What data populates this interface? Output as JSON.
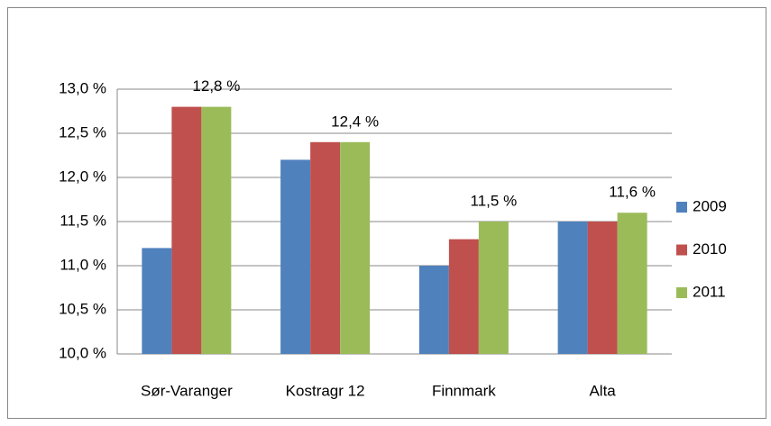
{
  "chart_data": {
    "type": "bar",
    "categories": [
      "Sør-Varanger",
      "Kostragr 12",
      "Finnmark",
      "Alta"
    ],
    "series": [
      {
        "name": "2009",
        "color": "#4f81bd",
        "values": [
          11.2,
          12.2,
          11.0,
          11.5
        ]
      },
      {
        "name": "2010",
        "color": "#c0504d",
        "values": [
          12.8,
          12.4,
          11.3,
          11.5
        ]
      },
      {
        "name": "2011",
        "color": "#9bbb59",
        "values": [
          12.8,
          12.4,
          11.5,
          11.6
        ],
        "value_labels": [
          "12,8 %",
          "12,4 %",
          "11,5 %",
          "11,6 %"
        ]
      }
    ],
    "ylim": [
      10.0,
      13.0
    ],
    "yticks": [
      {
        "value": 10.0,
        "label": "10,0 %"
      },
      {
        "value": 10.5,
        "label": "10,5 %"
      },
      {
        "value": 11.0,
        "label": "11,0 %"
      },
      {
        "value": 11.5,
        "label": "11,5 %"
      },
      {
        "value": 12.0,
        "label": "12,0 %"
      },
      {
        "value": 12.5,
        "label": "12,5 %"
      },
      {
        "value": 13.0,
        "label": "13,0 %"
      }
    ],
    "grid": true,
    "legend": "right"
  }
}
